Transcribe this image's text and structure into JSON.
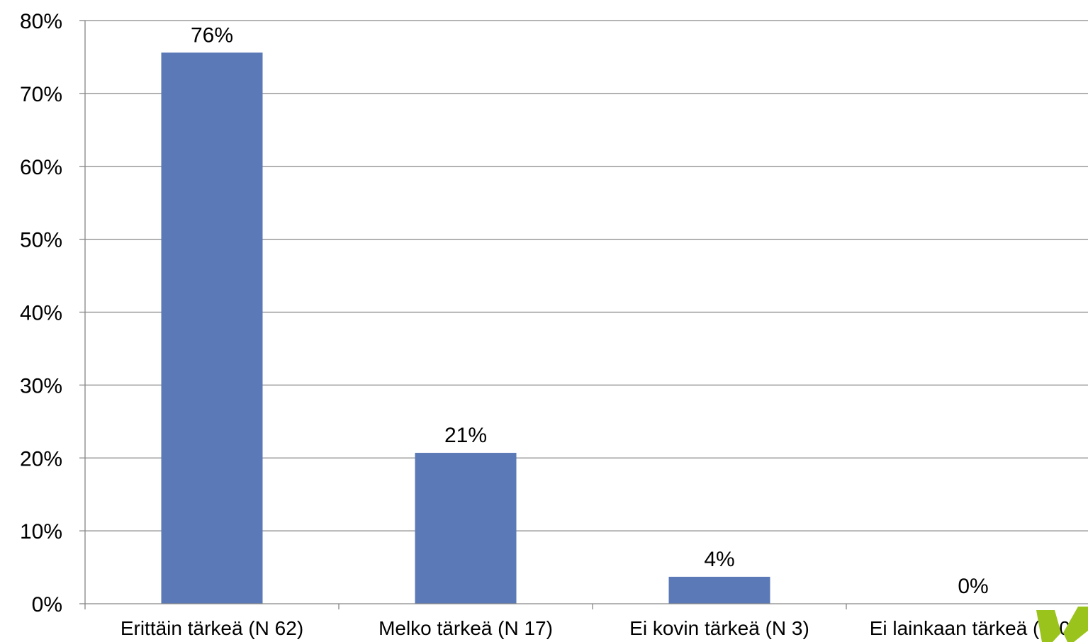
{
  "chart_data": {
    "type": "bar",
    "title": "",
    "xlabel": "",
    "ylabel": "",
    "categories": [
      "Erittäin tärkeä (N 62)",
      "Melko tärkeä (N 17)",
      "Ei kovin tärkeä (N 3)",
      "Ei lainkaan tärkeä (N 0)"
    ],
    "values": [
      75.6,
      20.7,
      3.7,
      0
    ],
    "data_labels": [
      "76%",
      "21%",
      "4%",
      "0%"
    ],
    "ylim": [
      0,
      80
    ],
    "yticks": [
      0,
      10,
      20,
      30,
      40,
      50,
      60,
      70,
      80
    ],
    "ytick_labels": [
      "0%",
      "10%",
      "20%",
      "30%",
      "40%",
      "50%",
      "60%",
      "70%",
      "80%"
    ],
    "grid": true,
    "legend": "none",
    "bar_color": "#5b79b7"
  },
  "logo": {
    "name": "green-v-logo-icon",
    "color": "#9ac31c"
  }
}
